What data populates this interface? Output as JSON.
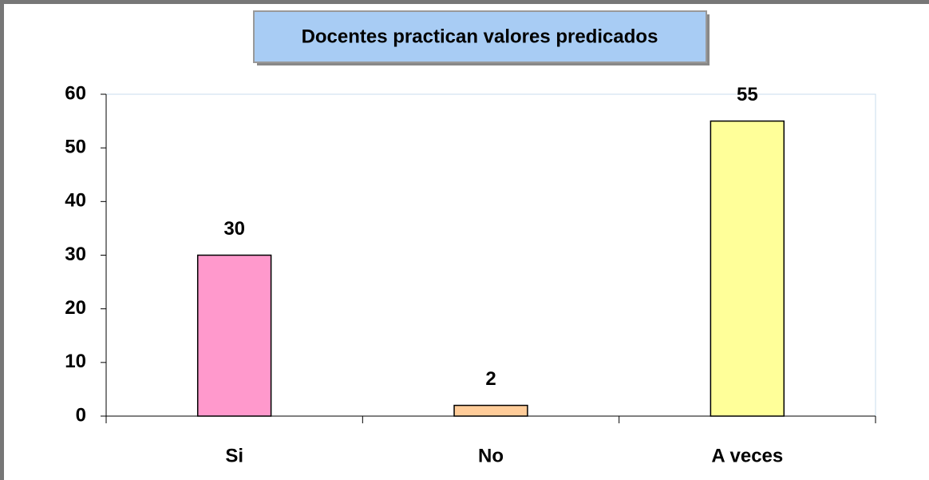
{
  "chart_data": {
    "type": "bar",
    "title": "Docentes practican valores predicados",
    "categories": [
      "Si",
      "No",
      "A veces"
    ],
    "values": [
      30,
      2,
      55
    ],
    "colors": [
      "#ff99cc",
      "#ffcc99",
      "#ffff99"
    ],
    "ylim": [
      0,
      60
    ],
    "yticks": [
      0,
      10,
      20,
      30,
      40,
      50,
      60
    ],
    "grid": false
  }
}
